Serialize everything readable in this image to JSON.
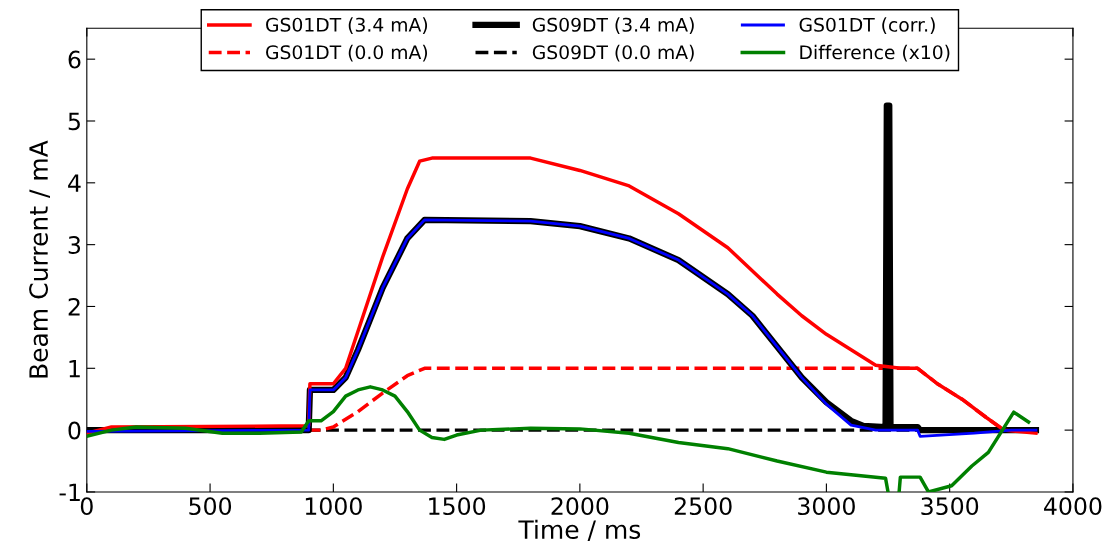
{
  "chart_data": {
    "type": "line",
    "xlabel": "Time / ms",
    "ylabel": "Beam Current / mA",
    "xlim": [
      0,
      4000
    ],
    "ylim": [
      -1,
      6.5
    ],
    "xticks": [
      0,
      500,
      1000,
      1500,
      2000,
      2500,
      3000,
      3500,
      4000
    ],
    "yticks": [
      -1,
      0,
      1,
      2,
      3,
      4,
      5,
      6
    ],
    "grid": false,
    "legend": "top",
    "series": [
      {
        "name": "GS01DT (3.4 mA)",
        "color": "#ff0000",
        "line_style": "solid",
        "x": [
          0,
          100,
          900,
          905,
          1000,
          1050,
          1100,
          1200,
          1300,
          1350,
          1400,
          1800,
          2000,
          2200,
          2400,
          2600,
          2800,
          2900,
          3000,
          3100,
          3200,
          3300,
          3370,
          3450,
          3550,
          3650,
          3720,
          3850
        ],
        "values": [
          -0.05,
          0.05,
          0.07,
          0.75,
          0.75,
          1.0,
          1.6,
          2.8,
          3.9,
          4.35,
          4.4,
          4.4,
          4.2,
          3.95,
          3.5,
          2.95,
          2.2,
          1.85,
          1.55,
          1.3,
          1.05,
          1.0,
          1.0,
          0.75,
          0.5,
          0.2,
          0.0,
          -0.05
        ]
      },
      {
        "name": "GS01DT (0.0 mA)",
        "color": "#ff0000",
        "line_style": "dashed",
        "x": [
          0,
          950,
          1000,
          1100,
          1200,
          1300,
          1370,
          3370,
          3450,
          3550,
          3650,
          3720
        ],
        "values": [
          0,
          0,
          0.05,
          0.3,
          0.6,
          0.88,
          1.0,
          1.0,
          0.75,
          0.5,
          0.2,
          0.0
        ]
      },
      {
        "name": "GS09DT (3.4 mA)",
        "color": "#000000",
        "line_style": "solid",
        "x": [
          0,
          900,
          905,
          1000,
          1050,
          1100,
          1200,
          1300,
          1370,
          1800,
          2000,
          2200,
          2400,
          2600,
          2700,
          2800,
          2900,
          3000,
          3100,
          3150,
          3240,
          3245,
          3255,
          3260,
          3370,
          3380,
          3850
        ],
        "values": [
          0,
          0,
          0.65,
          0.65,
          0.85,
          1.3,
          2.3,
          3.1,
          3.4,
          3.38,
          3.3,
          3.1,
          2.75,
          2.2,
          1.85,
          1.35,
          0.85,
          0.45,
          0.15,
          0.07,
          0.05,
          5.25,
          5.25,
          0.05,
          0.05,
          0.0,
          0.0
        ]
      },
      {
        "name": "GS09DT (0.0 mA)",
        "color": "#000000",
        "line_style": "dashed",
        "x": [
          0,
          3850
        ],
        "values": [
          0,
          0
        ]
      },
      {
        "name": "GS01DT (corr.)",
        "color": "#0000ff",
        "line_style": "solid",
        "x": [
          0,
          900,
          905,
          1000,
          1050,
          1100,
          1200,
          1300,
          1370,
          1800,
          2000,
          2200,
          2400,
          2600,
          2700,
          2800,
          2900,
          3000,
          3100,
          3200,
          3370,
          3380,
          3600,
          3750,
          3850
        ],
        "values": [
          -0.02,
          0,
          0.65,
          0.65,
          0.85,
          1.3,
          2.3,
          3.1,
          3.4,
          3.38,
          3.3,
          3.1,
          2.75,
          2.2,
          1.85,
          1.35,
          0.85,
          0.42,
          0.08,
          0.0,
          0.0,
          -0.1,
          -0.05,
          0.0,
          0.0
        ]
      },
      {
        "name": "Difference (x10)",
        "color": "#008000",
        "line_style": "solid",
        "x": [
          0,
          100,
          200,
          400,
          550,
          700,
          870,
          900,
          950,
          1000,
          1050,
          1100,
          1150,
          1200,
          1250,
          1300,
          1350,
          1400,
          1450,
          1500,
          1600,
          1800,
          2000,
          2200,
          2400,
          2600,
          2800,
          3000,
          3240,
          3250,
          3270,
          3295,
          3300,
          3380,
          3414,
          3508,
          3590,
          3657,
          3760,
          3820
        ],
        "values": [
          -0.1,
          0.0,
          0.05,
          0.03,
          -0.05,
          -0.05,
          -0.03,
          0.15,
          0.15,
          0.3,
          0.55,
          0.65,
          0.7,
          0.65,
          0.55,
          0.3,
          0.0,
          -0.12,
          -0.15,
          -0.08,
          0.0,
          0.03,
          0.02,
          -0.05,
          -0.2,
          -0.3,
          -0.5,
          -0.68,
          -0.78,
          -1.0,
          null,
          -1.0,
          -0.76,
          -0.76,
          -1.0,
          -0.9,
          -0.58,
          -0.36,
          0.29,
          0.13
        ]
      }
    ]
  }
}
